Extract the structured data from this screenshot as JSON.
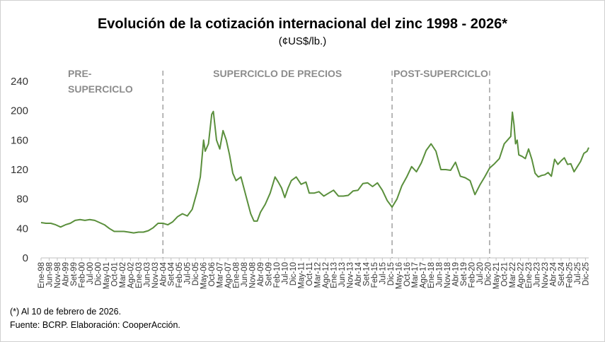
{
  "chart_data": {
    "type": "line",
    "title": "Evolución de la cotización internacional del zinc 1998  -  2026*",
    "subtitle": "(¢US$/lb.)",
    "xlabel": "",
    "ylabel": "",
    "ylim": [
      0,
      240
    ],
    "yticks": [
      0,
      40,
      80,
      120,
      160,
      200,
      240
    ],
    "grid": false,
    "line_color": "#5a8f3c",
    "divider_color": "#a6a6a6",
    "x_range": [
      "1998-01",
      "2026-02"
    ],
    "x_tick_labels": [
      "Ene-98",
      "Jun-98",
      "Nov-98",
      "Abr-99",
      "Set-99",
      "Feb-00",
      "Jul-00",
      "Dic-00",
      "May-01",
      "Oct-01",
      "Mar-02",
      "Ago-02",
      "Ene-03",
      "Jun-03",
      "Nov-03",
      "Abr-04",
      "Set-04",
      "Feb-05",
      "Jul-05",
      "Dic-05",
      "May-06",
      "Oct-06",
      "Mar-07",
      "Ago-07",
      "Ene-08",
      "Jun-08",
      "Nov-08",
      "Abr-09",
      "Set-09",
      "Feb-10",
      "Jul-10",
      "Dic-10",
      "May-11",
      "Oct-11",
      "Mar-12",
      "Ago-12",
      "Ene-13",
      "Jun-13",
      "Nov-13",
      "Abr-14",
      "Set-14",
      "Feb-15",
      "Jul-15",
      "Dic-15",
      "May-16",
      "Oct-16",
      "Mar-17",
      "Ago-17",
      "Ene-18",
      "Jun-18",
      "Nov-18",
      "Abr-19",
      "Set-19",
      "Feb-20",
      "Jul-20",
      "Dic-20",
      "May-21",
      "Oct-21",
      "Mar-22",
      "Ago-22",
      "Ene-23",
      "Jun-23",
      "Nov-23",
      "Abr-24",
      "Set-24",
      "Feb-25",
      "Jul-25",
      "Dic-25"
    ],
    "periods": [
      {
        "label_line1": "PRE-",
        "label_line2": "SUPERCICLO",
        "start": "1998-01",
        "end": "2004-04"
      },
      {
        "label_line1": "SUPERCICLO DE PRECIOS",
        "label_line2": "",
        "start": "2004-04",
        "end": "2016-01"
      },
      {
        "label_line1": "POST-SUPERCICLO",
        "label_line2": "",
        "start": "2016-01",
        "end": "2021-01"
      }
    ],
    "period_dividers": [
      "2004-04",
      "2016-01",
      "2021-01"
    ],
    "series": [
      {
        "name": "Zinc",
        "points": [
          [
            "1998-01",
            48
          ],
          [
            "1998-04",
            47
          ],
          [
            "1998-07",
            47
          ],
          [
            "1998-10",
            45
          ],
          [
            "1999-01",
            42
          ],
          [
            "1999-04",
            45
          ],
          [
            "1999-07",
            47
          ],
          [
            "1999-10",
            51
          ],
          [
            "2000-01",
            52
          ],
          [
            "2000-04",
            51
          ],
          [
            "2000-07",
            52
          ],
          [
            "2000-10",
            51
          ],
          [
            "2001-01",
            48
          ],
          [
            "2001-04",
            45
          ],
          [
            "2001-07",
            40
          ],
          [
            "2001-10",
            36
          ],
          [
            "2002-01",
            36
          ],
          [
            "2002-04",
            36
          ],
          [
            "2002-07",
            35
          ],
          [
            "2002-10",
            34
          ],
          [
            "2003-01",
            35
          ],
          [
            "2003-04",
            35
          ],
          [
            "2003-07",
            37
          ],
          [
            "2003-10",
            41
          ],
          [
            "2004-01",
            47
          ],
          [
            "2004-04",
            47
          ],
          [
            "2004-07",
            45
          ],
          [
            "2004-10",
            49
          ],
          [
            "2005-01",
            56
          ],
          [
            "2005-04",
            60
          ],
          [
            "2005-07",
            57
          ],
          [
            "2005-10",
            66
          ],
          [
            "2006-01",
            90
          ],
          [
            "2006-03",
            110
          ],
          [
            "2006-05",
            160
          ],
          [
            "2006-06",
            145
          ],
          [
            "2006-08",
            155
          ],
          [
            "2006-10",
            195
          ],
          [
            "2006-11",
            199
          ],
          [
            "2007-01",
            160
          ],
          [
            "2007-03",
            148
          ],
          [
            "2007-05",
            173
          ],
          [
            "2007-07",
            160
          ],
          [
            "2007-09",
            140
          ],
          [
            "2007-11",
            115
          ],
          [
            "2008-01",
            105
          ],
          [
            "2008-04",
            110
          ],
          [
            "2008-07",
            85
          ],
          [
            "2008-10",
            60
          ],
          [
            "2008-12",
            50
          ],
          [
            "2009-02",
            50
          ],
          [
            "2009-04",
            62
          ],
          [
            "2009-07",
            73
          ],
          [
            "2009-10",
            88
          ],
          [
            "2010-01",
            110
          ],
          [
            "2010-03",
            103
          ],
          [
            "2010-05",
            95
          ],
          [
            "2010-07",
            82
          ],
          [
            "2010-09",
            95
          ],
          [
            "2010-11",
            105
          ],
          [
            "2011-02",
            110
          ],
          [
            "2011-05",
            100
          ],
          [
            "2011-08",
            103
          ],
          [
            "2011-10",
            88
          ],
          [
            "2012-01",
            88
          ],
          [
            "2012-04",
            90
          ],
          [
            "2012-07",
            84
          ],
          [
            "2012-10",
            88
          ],
          [
            "2013-01",
            92
          ],
          [
            "2013-04",
            84
          ],
          [
            "2013-07",
            84
          ],
          [
            "2013-10",
            85
          ],
          [
            "2014-01",
            91
          ],
          [
            "2014-04",
            92
          ],
          [
            "2014-07",
            101
          ],
          [
            "2014-10",
            102
          ],
          [
            "2015-01",
            97
          ],
          [
            "2015-04",
            102
          ],
          [
            "2015-07",
            92
          ],
          [
            "2015-10",
            78
          ],
          [
            "2016-01",
            69
          ],
          [
            "2016-04",
            80
          ],
          [
            "2016-07",
            98
          ],
          [
            "2016-10",
            110
          ],
          [
            "2017-01",
            124
          ],
          [
            "2017-04",
            117
          ],
          [
            "2017-07",
            129
          ],
          [
            "2017-10",
            146
          ],
          [
            "2018-01",
            155
          ],
          [
            "2018-04",
            145
          ],
          [
            "2018-07",
            120
          ],
          [
            "2018-10",
            120
          ],
          [
            "2019-01",
            119
          ],
          [
            "2019-04",
            130
          ],
          [
            "2019-07",
            111
          ],
          [
            "2019-10",
            109
          ],
          [
            "2020-01",
            105
          ],
          [
            "2020-04",
            86
          ],
          [
            "2020-07",
            99
          ],
          [
            "2020-10",
            110
          ],
          [
            "2021-01",
            122
          ],
          [
            "2021-04",
            128
          ],
          [
            "2021-07",
            135
          ],
          [
            "2021-10",
            155
          ],
          [
            "2021-12",
            160
          ],
          [
            "2022-02",
            165
          ],
          [
            "2022-03",
            198
          ],
          [
            "2022-04",
            181
          ],
          [
            "2022-05",
            155
          ],
          [
            "2022-06",
            160
          ],
          [
            "2022-07",
            140
          ],
          [
            "2022-09",
            138
          ],
          [
            "2022-11",
            135
          ],
          [
            "2023-01",
            148
          ],
          [
            "2023-03",
            134
          ],
          [
            "2023-05",
            115
          ],
          [
            "2023-07",
            110
          ],
          [
            "2023-09",
            112
          ],
          [
            "2023-11",
            113
          ],
          [
            "2024-01",
            116
          ],
          [
            "2024-03",
            111
          ],
          [
            "2024-05",
            134
          ],
          [
            "2024-07",
            127
          ],
          [
            "2024-09",
            132
          ],
          [
            "2024-11",
            136
          ],
          [
            "2025-01",
            127
          ],
          [
            "2025-03",
            128
          ],
          [
            "2025-05",
            117
          ],
          [
            "2025-07",
            124
          ],
          [
            "2025-09",
            131
          ],
          [
            "2025-11",
            142
          ],
          [
            "2026-01",
            145
          ],
          [
            "2026-02",
            150
          ]
        ]
      }
    ]
  },
  "footer": {
    "note": "(*) Al 10  de febrero de 2026.",
    "source": "Fuente: BCRP. Elaboración: CooperAcción."
  }
}
